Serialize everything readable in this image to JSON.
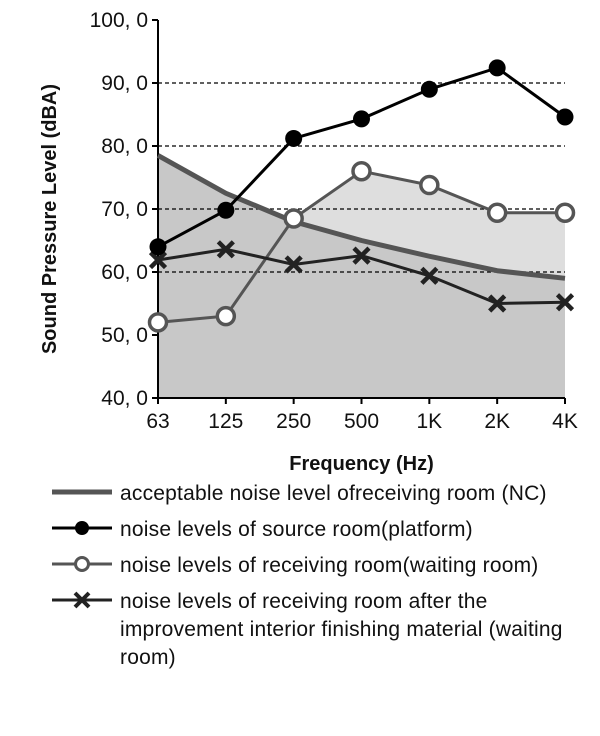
{
  "chart_data": {
    "type": "line",
    "title": "",
    "xlabel": "Frequency (Hz)",
    "ylabel": "Sound Pressure Level (dBA)",
    "categories": [
      "63",
      "125",
      "250",
      "500",
      "1K",
      "2K",
      "4K"
    ],
    "yticks": [
      "100, 0",
      "90, 0",
      "80, 0",
      "70, 0",
      "60, 0",
      "50, 0",
      "40, 0"
    ],
    "ylim": [
      40,
      100
    ],
    "gridlines": [
      90,
      80,
      70,
      60
    ],
    "series": [
      {
        "name": "acceptable noise level ofreceiving room (NC)",
        "marker": "none",
        "color": "#555555",
        "filled": true,
        "values": [
          78.5,
          72.5,
          68,
          65,
          62.5,
          60.2,
          59
        ]
      },
      {
        "name": "noise levels of source room(platform)",
        "marker": "filled-circle",
        "color": "#000000",
        "values": [
          64,
          69.8,
          81.2,
          84.3,
          89,
          92.4,
          84.6
        ]
      },
      {
        "name": "noise levels of receiving room(waiting room)",
        "marker": "open-circle",
        "color": "#555555",
        "filled": true,
        "values": [
          52,
          53,
          68.5,
          76,
          73.8,
          69.4,
          69.4
        ]
      },
      {
        "name": "noise levels of receiving room after the improvement interior finishing material (waiting room)",
        "marker": "x",
        "color": "#222222",
        "values": [
          61.9,
          63.6,
          61.2,
          62.6,
          59.4,
          55,
          55.2
        ]
      }
    ]
  },
  "legend": {
    "nc_label": "acceptable noise level ofreceiving room (NC)",
    "source_label": "noise levels of source room(platform)",
    "receiving_label": "noise levels of receiving room(waiting room)",
    "improved_label": "noise levels of receiving room after the improvement interior finishing material (waiting room)"
  }
}
